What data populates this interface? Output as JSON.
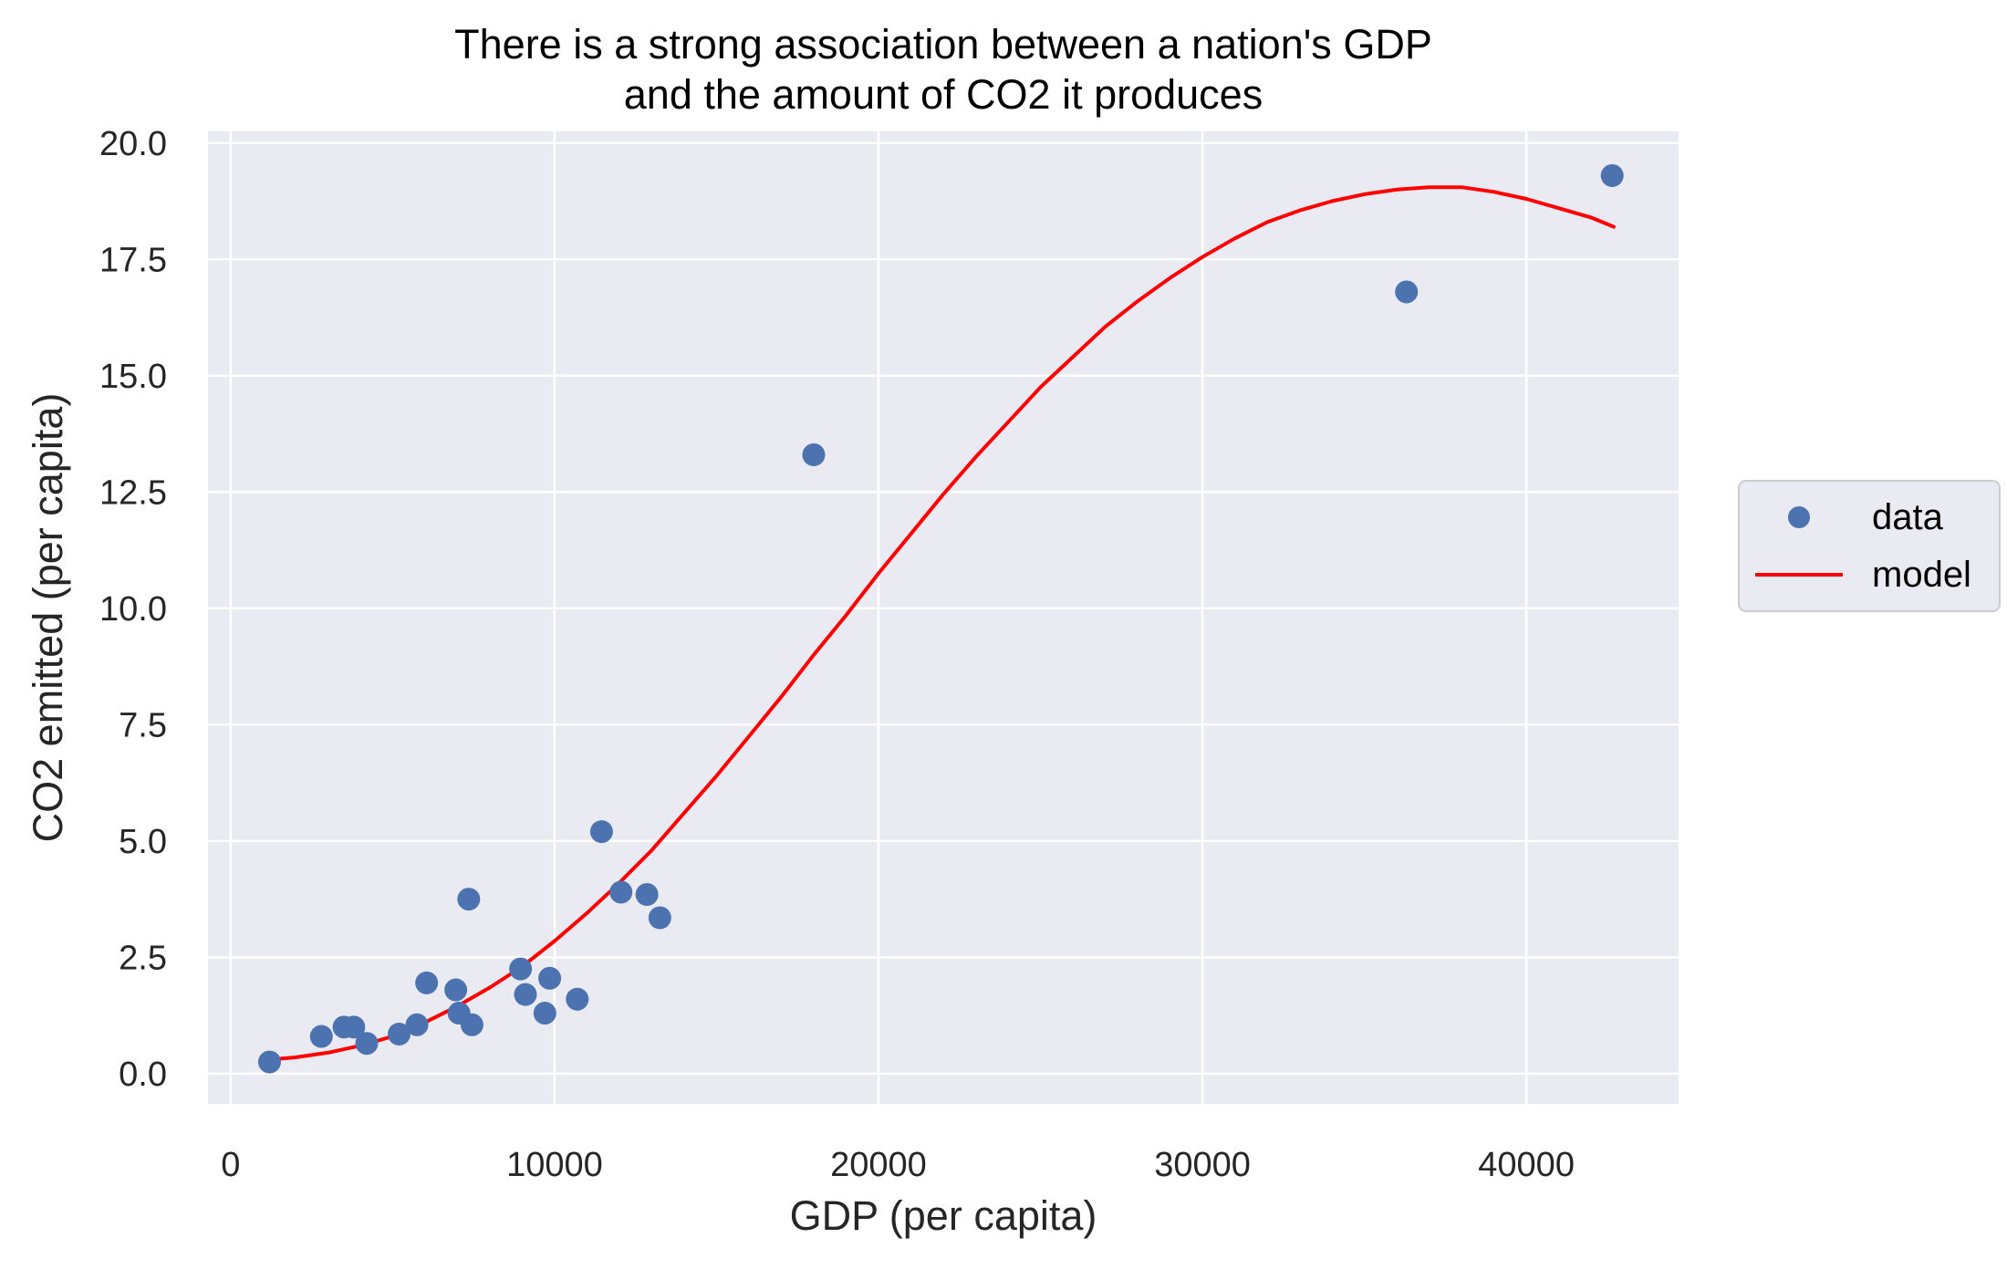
{
  "chart_data": {
    "type": "scatter",
    "title_lines": [
      "There is a strong association between a nation's GDP",
      "and the amount of CO2 it produces"
    ],
    "xlabel": "GDP (per capita)",
    "ylabel": "CO2 emitted (per capita)",
    "xlim": [
      -700,
      44700
    ],
    "ylim": [
      -0.65,
      20.25
    ],
    "xticks": [
      0,
      10000,
      20000,
      30000,
      40000
    ],
    "xtick_labels": [
      "0",
      "10000",
      "20000",
      "30000",
      "40000"
    ],
    "yticks": [
      0,
      2.5,
      5,
      7.5,
      10,
      12.5,
      15,
      17.5,
      20
    ],
    "ytick_labels": [
      "0.0",
      "2.5",
      "5.0",
      "7.5",
      "10.0",
      "12.5",
      "15.0",
      "17.5",
      "20.0"
    ],
    "grid": true,
    "legend_position": "right, outside plot",
    "series": [
      {
        "name": "data",
        "kind": "scatter",
        "color": "#4c72b0",
        "points": [
          [
            1200,
            0.25
          ],
          [
            2800,
            0.8
          ],
          [
            3500,
            1.0
          ],
          [
            3800,
            1.0
          ],
          [
            4200,
            0.65
          ],
          [
            5200,
            0.85
          ],
          [
            5750,
            1.05
          ],
          [
            6050,
            1.95
          ],
          [
            6950,
            1.8
          ],
          [
            7050,
            1.3
          ],
          [
            7350,
            3.75
          ],
          [
            7450,
            1.05
          ],
          [
            8950,
            2.25
          ],
          [
            9100,
            1.7
          ],
          [
            9700,
            1.3
          ],
          [
            9850,
            2.05
          ],
          [
            10700,
            1.6
          ],
          [
            11450,
            5.2
          ],
          [
            12050,
            3.9
          ],
          [
            12850,
            3.85
          ],
          [
            13250,
            3.35
          ],
          [
            18000,
            13.3
          ],
          [
            36300,
            16.8
          ],
          [
            42650,
            19.3
          ]
        ]
      },
      {
        "name": "model",
        "kind": "line",
        "color": "#ff0000",
        "points": [
          [
            1200,
            0.3
          ],
          [
            2000,
            0.35
          ],
          [
            3000,
            0.45
          ],
          [
            4000,
            0.6
          ],
          [
            5000,
            0.8
          ],
          [
            6000,
            1.1
          ],
          [
            7000,
            1.45
          ],
          [
            8000,
            1.85
          ],
          [
            9000,
            2.3
          ],
          [
            10000,
            2.85
          ],
          [
            11000,
            3.45
          ],
          [
            12000,
            4.1
          ],
          [
            13000,
            4.8
          ],
          [
            14000,
            5.6
          ],
          [
            15000,
            6.4
          ],
          [
            16000,
            7.25
          ],
          [
            17000,
            8.1
          ],
          [
            18000,
            9.0
          ],
          [
            19000,
            9.85
          ],
          [
            20000,
            10.75
          ],
          [
            21000,
            11.6
          ],
          [
            22000,
            12.45
          ],
          [
            23000,
            13.25
          ],
          [
            24000,
            14.0
          ],
          [
            25000,
            14.75
          ],
          [
            26000,
            15.4
          ],
          [
            27000,
            16.05
          ],
          [
            28000,
            16.6
          ],
          [
            29000,
            17.1
          ],
          [
            30000,
            17.55
          ],
          [
            31000,
            17.95
          ],
          [
            32000,
            18.3
          ],
          [
            33000,
            18.55
          ],
          [
            34000,
            18.75
          ],
          [
            35000,
            18.9
          ],
          [
            36000,
            19.0
          ],
          [
            37000,
            19.05
          ],
          [
            38000,
            19.05
          ],
          [
            39000,
            18.95
          ],
          [
            40000,
            18.8
          ],
          [
            41000,
            18.6
          ],
          [
            42000,
            18.4
          ],
          [
            42700,
            18.2
          ]
        ]
      }
    ]
  }
}
